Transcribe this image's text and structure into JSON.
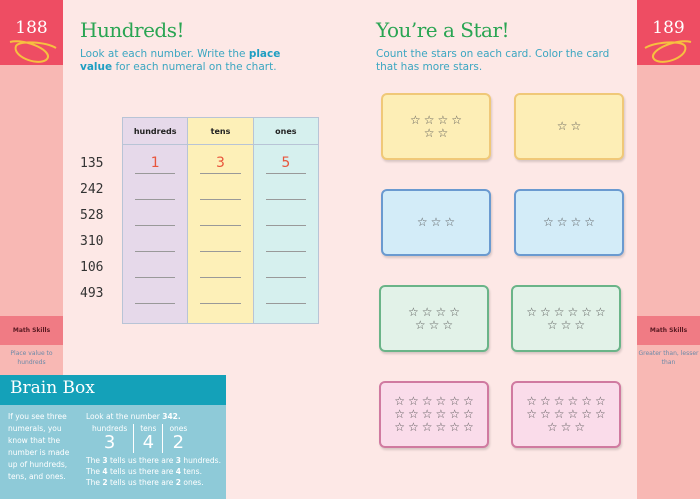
{
  "left_page": {
    "page_number": "188",
    "tab_label": "Math Skills",
    "tab_sub": "Place value to hundreds",
    "title": "Hundreds!",
    "instruction_pre": "Look at each number. Write the ",
    "instruction_bold": "place value",
    "instruction_post": " for each numeral on the chart.",
    "table": {
      "headers": [
        "hundreds",
        "tens",
        "ones"
      ],
      "rows": [
        {
          "number": "135",
          "answers": [
            "1",
            "3",
            "5"
          ]
        },
        {
          "number": "242",
          "answers": [
            "",
            "",
            ""
          ]
        },
        {
          "number": "528",
          "answers": [
            "",
            "",
            ""
          ]
        },
        {
          "number": "310",
          "answers": [
            "",
            "",
            ""
          ]
        },
        {
          "number": "106",
          "answers": [
            "",
            "",
            ""
          ]
        },
        {
          "number": "493",
          "answers": [
            "",
            "",
            ""
          ]
        }
      ],
      "column_colors": [
        "#e6d9ea",
        "#fdf0b8",
        "#d6f0ee"
      ]
    }
  },
  "brain_box": {
    "title": "Brain Box",
    "left_text": "If you see three numerals, you know that the number is made up of hundreds, tens, and ones.",
    "intro": "Look at the number ",
    "intro_number": "342.",
    "places": [
      {
        "label": "hundreds",
        "digit": "3"
      },
      {
        "label": "tens",
        "digit": "4"
      },
      {
        "label": "ones",
        "digit": "2"
      }
    ],
    "lines": [
      [
        "The ",
        "3",
        " tells us there are ",
        "3",
        " hundreds."
      ],
      [
        "The ",
        "4",
        " tells us there are ",
        "4",
        " tens."
      ],
      [
        "The ",
        "2",
        " tells us there are ",
        "2",
        " ones."
      ]
    ]
  },
  "right_page": {
    "page_number": "189",
    "tab_label": "Math Skills",
    "tab_sub": "Greater than, lesser than",
    "title": "You’re a Star!",
    "instruction": "Count the stars on each card. Color the card that has more stars.",
    "cards": [
      {
        "stars": 6,
        "bg": "#fdeeb6",
        "border": "#f0c878"
      },
      {
        "stars": 2,
        "bg": "#fdeeb6",
        "border": "#f0c878"
      },
      {
        "stars": 3,
        "bg": "#d3ecf8",
        "border": "#6a9ad0"
      },
      {
        "stars": 4,
        "bg": "#d3ecf8",
        "border": "#6a9ad0"
      },
      {
        "stars": 7,
        "bg": "#e2f2e8",
        "border": "#6ab488"
      },
      {
        "stars": 9,
        "bg": "#e2f2e8",
        "border": "#6ab488"
      },
      {
        "stars": 18,
        "bg": "#fadcea",
        "border": "#d07aa0"
      },
      {
        "stars": 15,
        "bg": "#fadcea",
        "border": "#d07aa0"
      }
    ]
  },
  "colors": {
    "title_green": "#2aa553",
    "instruction_blue": "#3ba6c1",
    "tab_red": "#ee4d63",
    "brain_teal": "#14a1b9"
  }
}
